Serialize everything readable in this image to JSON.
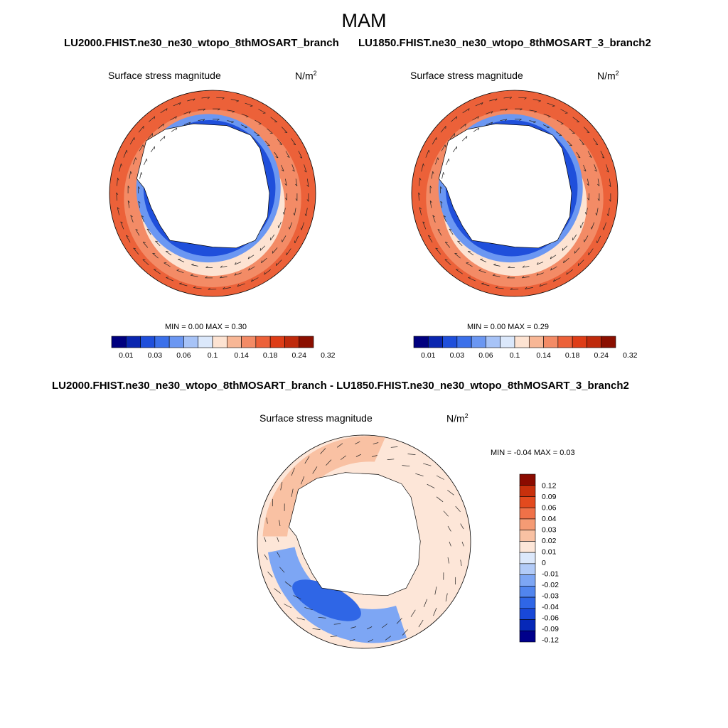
{
  "figure": {
    "title": "MAM"
  },
  "panels": [
    {
      "title": "LU2000.FHIST.ne30_ne30_wtopo_8thMOSART_branch",
      "variable": "Surface stress magnitude",
      "units_base": "N/m",
      "units_exp": "2",
      "min_max": "MIN =   0.00 MAX =   0.30",
      "colorbar_labels": [
        "0.01",
        "0.03",
        "0.06",
        "0.1",
        "0.14",
        "0.18",
        "0.24",
        "0.32"
      ]
    },
    {
      "title": "LU1850.FHIST.ne30_ne30_wtopo_8thMOSART_3_branch2",
      "variable": "Surface stress magnitude",
      "units_base": "N/m",
      "units_exp": "2",
      "min_max": "MIN =   0.00 MAX =   0.29",
      "colorbar_labels": [
        "0.01",
        "0.03",
        "0.06",
        "0.1",
        "0.14",
        "0.18",
        "0.24",
        "0.32"
      ]
    },
    {
      "title": "LU2000.FHIST.ne30_ne30_wtopo_8thMOSART_branch - LU1850.FHIST.ne30_ne30_wtopo_8thMOSART_3_branch2",
      "variable": "Surface stress magnitude",
      "units_base": "N/m",
      "units_exp": "2",
      "min_max": "MIN =  -0.04 MAX =   0.03",
      "colorbar_labels": [
        "0.12",
        "0.09",
        "0.06",
        "0.04",
        "0.03",
        "0.02",
        "0.01",
        "0",
        "-0.01",
        "-0.02",
        "-0.03",
        "-0.04",
        "-0.06",
        "-0.09",
        "-0.12"
      ]
    }
  ],
  "colors": {
    "abs_scale": [
      "#00007f",
      "#0a26b0",
      "#1f4fdb",
      "#3b70ea",
      "#6b97f2",
      "#a7c3f7",
      "#dbe8fb",
      "#fde3d2",
      "#f8b796",
      "#f38b66",
      "#ec6139",
      "#de3d17",
      "#bf2a0c",
      "#8b0f00"
    ],
    "diff_scale": [
      "#00008b",
      "#0628b8",
      "#1848d8",
      "#2f66e6",
      "#5185ee",
      "#7da6f4",
      "#b2cbf8",
      "#dce8fb",
      "#fde6d8",
      "#f9c1a3",
      "#f59b74",
      "#f07148",
      "#e34a1e",
      "#c8300c",
      "#8b0b00"
    ]
  }
}
